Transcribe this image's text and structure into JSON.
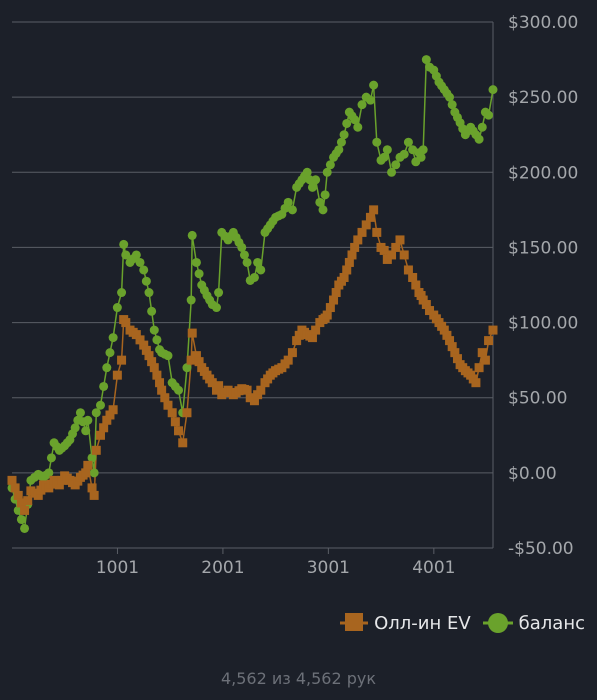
{
  "colors": {
    "background": "#1c2029",
    "grid": "#5a5e66",
    "ev_series": "#a8651f",
    "balance_series": "#6aa22c"
  },
  "chart_data": {
    "type": "line",
    "xlim": [
      1,
      4562
    ],
    "ylim": [
      -50,
      300
    ],
    "grid": true,
    "y_axis_side": "right",
    "legend_placement": "bottom-right",
    "x_ticks": [
      1001,
      2001,
      3001,
      4001
    ],
    "x_tick_labels": [
      "1001",
      "2001",
      "3001",
      "4001"
    ],
    "y_ticks": [
      -50,
      0,
      50,
      100,
      150,
      200,
      250,
      300
    ],
    "y_tick_labels": [
      "-$50.00",
      "$0.00",
      "$50.00",
      "$100.00",
      "$150.00",
      "$200.00",
      "$250.00",
      "$300.00"
    ],
    "series": [
      {
        "name": "баланс",
        "marker": "circle",
        "x": [
          1,
          60,
          120,
          180,
          250,
          300,
          350,
          400,
          450,
          500,
          550,
          600,
          650,
          700,
          720,
          760,
          780,
          800,
          840,
          900,
          960,
          1000,
          1040,
          1060,
          1080,
          1120,
          1180,
          1250,
          1300,
          1350,
          1400,
          1420,
          1480,
          1520,
          1580,
          1620,
          1660,
          1700,
          1710,
          1750,
          1800,
          1850,
          1900,
          1940,
          1960,
          1990,
          2050,
          2100,
          2180,
          2230,
          2260,
          2300,
          2330,
          2360,
          2400,
          2450,
          2500,
          2560,
          2620,
          2660,
          2700,
          2750,
          2800,
          2850,
          2880,
          2920,
          2950,
          2970,
          2990,
          3050,
          3100,
          3150,
          3200,
          3250,
          3280,
          3320,
          3360,
          3400,
          3430,
          3460,
          3500,
          3530,
          3560,
          3600,
          3640,
          3680,
          3720,
          3760,
          3800,
          3830,
          3860,
          3880,
          3900,
          3930,
          3960,
          4000,
          4050,
          4100,
          4150,
          4200,
          4250,
          4300,
          4350,
          4400,
          4430,
          4460,
          4490,
          4520,
          4562
        ],
        "values": [
          -10,
          -25,
          -37,
          -5,
          -1,
          -3,
          0,
          20,
          15,
          18,
          22,
          30,
          40,
          28,
          35,
          10,
          0,
          40,
          45,
          70,
          90,
          110,
          120,
          152,
          145,
          140,
          145,
          135,
          120,
          95,
          82,
          80,
          78,
          60,
          55,
          40,
          70,
          115,
          158,
          140,
          125,
          118,
          112,
          110,
          120,
          160,
          155,
          160,
          150,
          140,
          128,
          130,
          140,
          135,
          160,
          165,
          170,
          172,
          180,
          175,
          190,
          195,
          200,
          190,
          195,
          180,
          175,
          185,
          200,
          210,
          215,
          225,
          240,
          235,
          230,
          245,
          250,
          248,
          258,
          220,
          208,
          210,
          215,
          200,
          205,
          210,
          212,
          220,
          215,
          207,
          213,
          210,
          215,
          275,
          270,
          268,
          260,
          255,
          250,
          240,
          233,
          225,
          230,
          225,
          222,
          230,
          240,
          238,
          255
        ]
      },
      {
        "name": "Олл-ин EV",
        "marker": "square",
        "x": [
          1,
          60,
          120,
          180,
          250,
          300,
          350,
          400,
          450,
          500,
          550,
          600,
          650,
          700,
          720,
          760,
          780,
          800,
          840,
          900,
          960,
          1000,
          1040,
          1060,
          1080,
          1120,
          1180,
          1250,
          1300,
          1350,
          1400,
          1420,
          1480,
          1520,
          1580,
          1620,
          1660,
          1700,
          1710,
          1750,
          1800,
          1850,
          1900,
          1940,
          1960,
          1990,
          2050,
          2100,
          2180,
          2230,
          2260,
          2300,
          2330,
          2360,
          2400,
          2450,
          2500,
          2560,
          2620,
          2660,
          2700,
          2750,
          2800,
          2850,
          2880,
          2920,
          2950,
          2970,
          2990,
          3050,
          3100,
          3150,
          3200,
          3250,
          3280,
          3320,
          3360,
          3400,
          3430,
          3460,
          3500,
          3530,
          3560,
          3600,
          3640,
          3680,
          3720,
          3760,
          3800,
          3830,
          3860,
          3880,
          3900,
          3930,
          3960,
          4000,
          4050,
          4100,
          4150,
          4200,
          4250,
          4300,
          4350,
          4400,
          4430,
          4460,
          4490,
          4520,
          4562
        ],
        "values": [
          -5,
          -15,
          -25,
          -12,
          -15,
          -8,
          -10,
          -5,
          -8,
          -2,
          -5,
          -8,
          -3,
          0,
          5,
          -10,
          -15,
          15,
          25,
          35,
          42,
          65,
          75,
          102,
          100,
          95,
          92,
          85,
          78,
          70,
          60,
          55,
          45,
          40,
          28,
          20,
          40,
          75,
          93,
          78,
          70,
          65,
          60,
          55,
          58,
          52,
          55,
          52,
          56,
          55,
          50,
          48,
          52,
          55,
          60,
          65,
          68,
          70,
          75,
          80,
          88,
          95,
          92,
          90,
          95,
          100,
          102,
          103,
          105,
          115,
          125,
          130,
          140,
          150,
          155,
          160,
          165,
          170,
          175,
          160,
          150,
          148,
          142,
          145,
          150,
          155,
          145,
          135,
          130,
          125,
          120,
          118,
          115,
          112,
          108,
          105,
          100,
          95,
          88,
          80,
          72,
          68,
          65,
          60,
          70,
          80,
          75,
          88,
          95
        ]
      }
    ]
  },
  "legend": {
    "items": [
      {
        "label": "Олл-ин EV",
        "icon": "square-marker-icon",
        "color": "#a8651f"
      },
      {
        "label": "баланс",
        "icon": "circle-marker-icon",
        "color": "#6aa22c"
      }
    ]
  },
  "footer": {
    "hands_text": "4,562 из 4,562 рук"
  }
}
